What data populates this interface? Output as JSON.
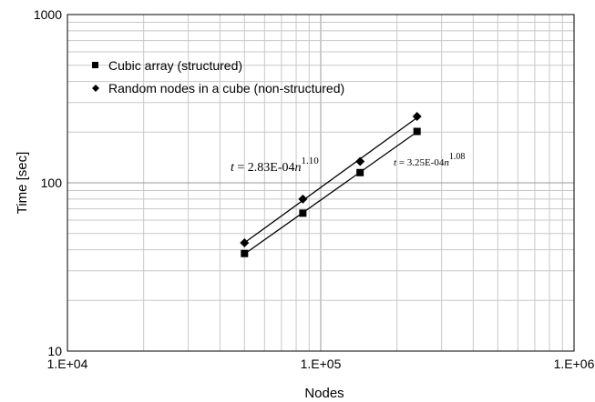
{
  "chart_data": {
    "type": "scatter",
    "xlabel": "Nodes",
    "ylabel": "Time [sec]",
    "xscale": "log",
    "yscale": "log",
    "xlim": [
      10000,
      1000000
    ],
    "ylim": [
      10,
      1000
    ],
    "grid": true,
    "x_ticks": [
      "1.E+04",
      "1.E+05",
      "1.E+06"
    ],
    "y_ticks": [
      "10",
      "100",
      "1000"
    ],
    "legend_position": "top-left",
    "series": [
      {
        "name": "Cubic array (structured)",
        "marker": "square",
        "x": [
          50000,
          85000,
          143000,
          240000
        ],
        "y": [
          38,
          66,
          115,
          202
        ],
        "fit_label": {
          "prefix": "t",
          "text": " = 3.25E-04",
          "var": "n",
          "exp": "1.08"
        }
      },
      {
        "name": "Random nodes in a cube (non-structured)",
        "marker": "diamond",
        "x": [
          50000,
          85000,
          143000,
          240000
        ],
        "y": [
          44,
          80,
          134,
          248
        ],
        "fit_label": {
          "prefix": "t",
          "text": " = 2.83E-04",
          "var": "n",
          "exp": "1.10"
        }
      }
    ]
  }
}
